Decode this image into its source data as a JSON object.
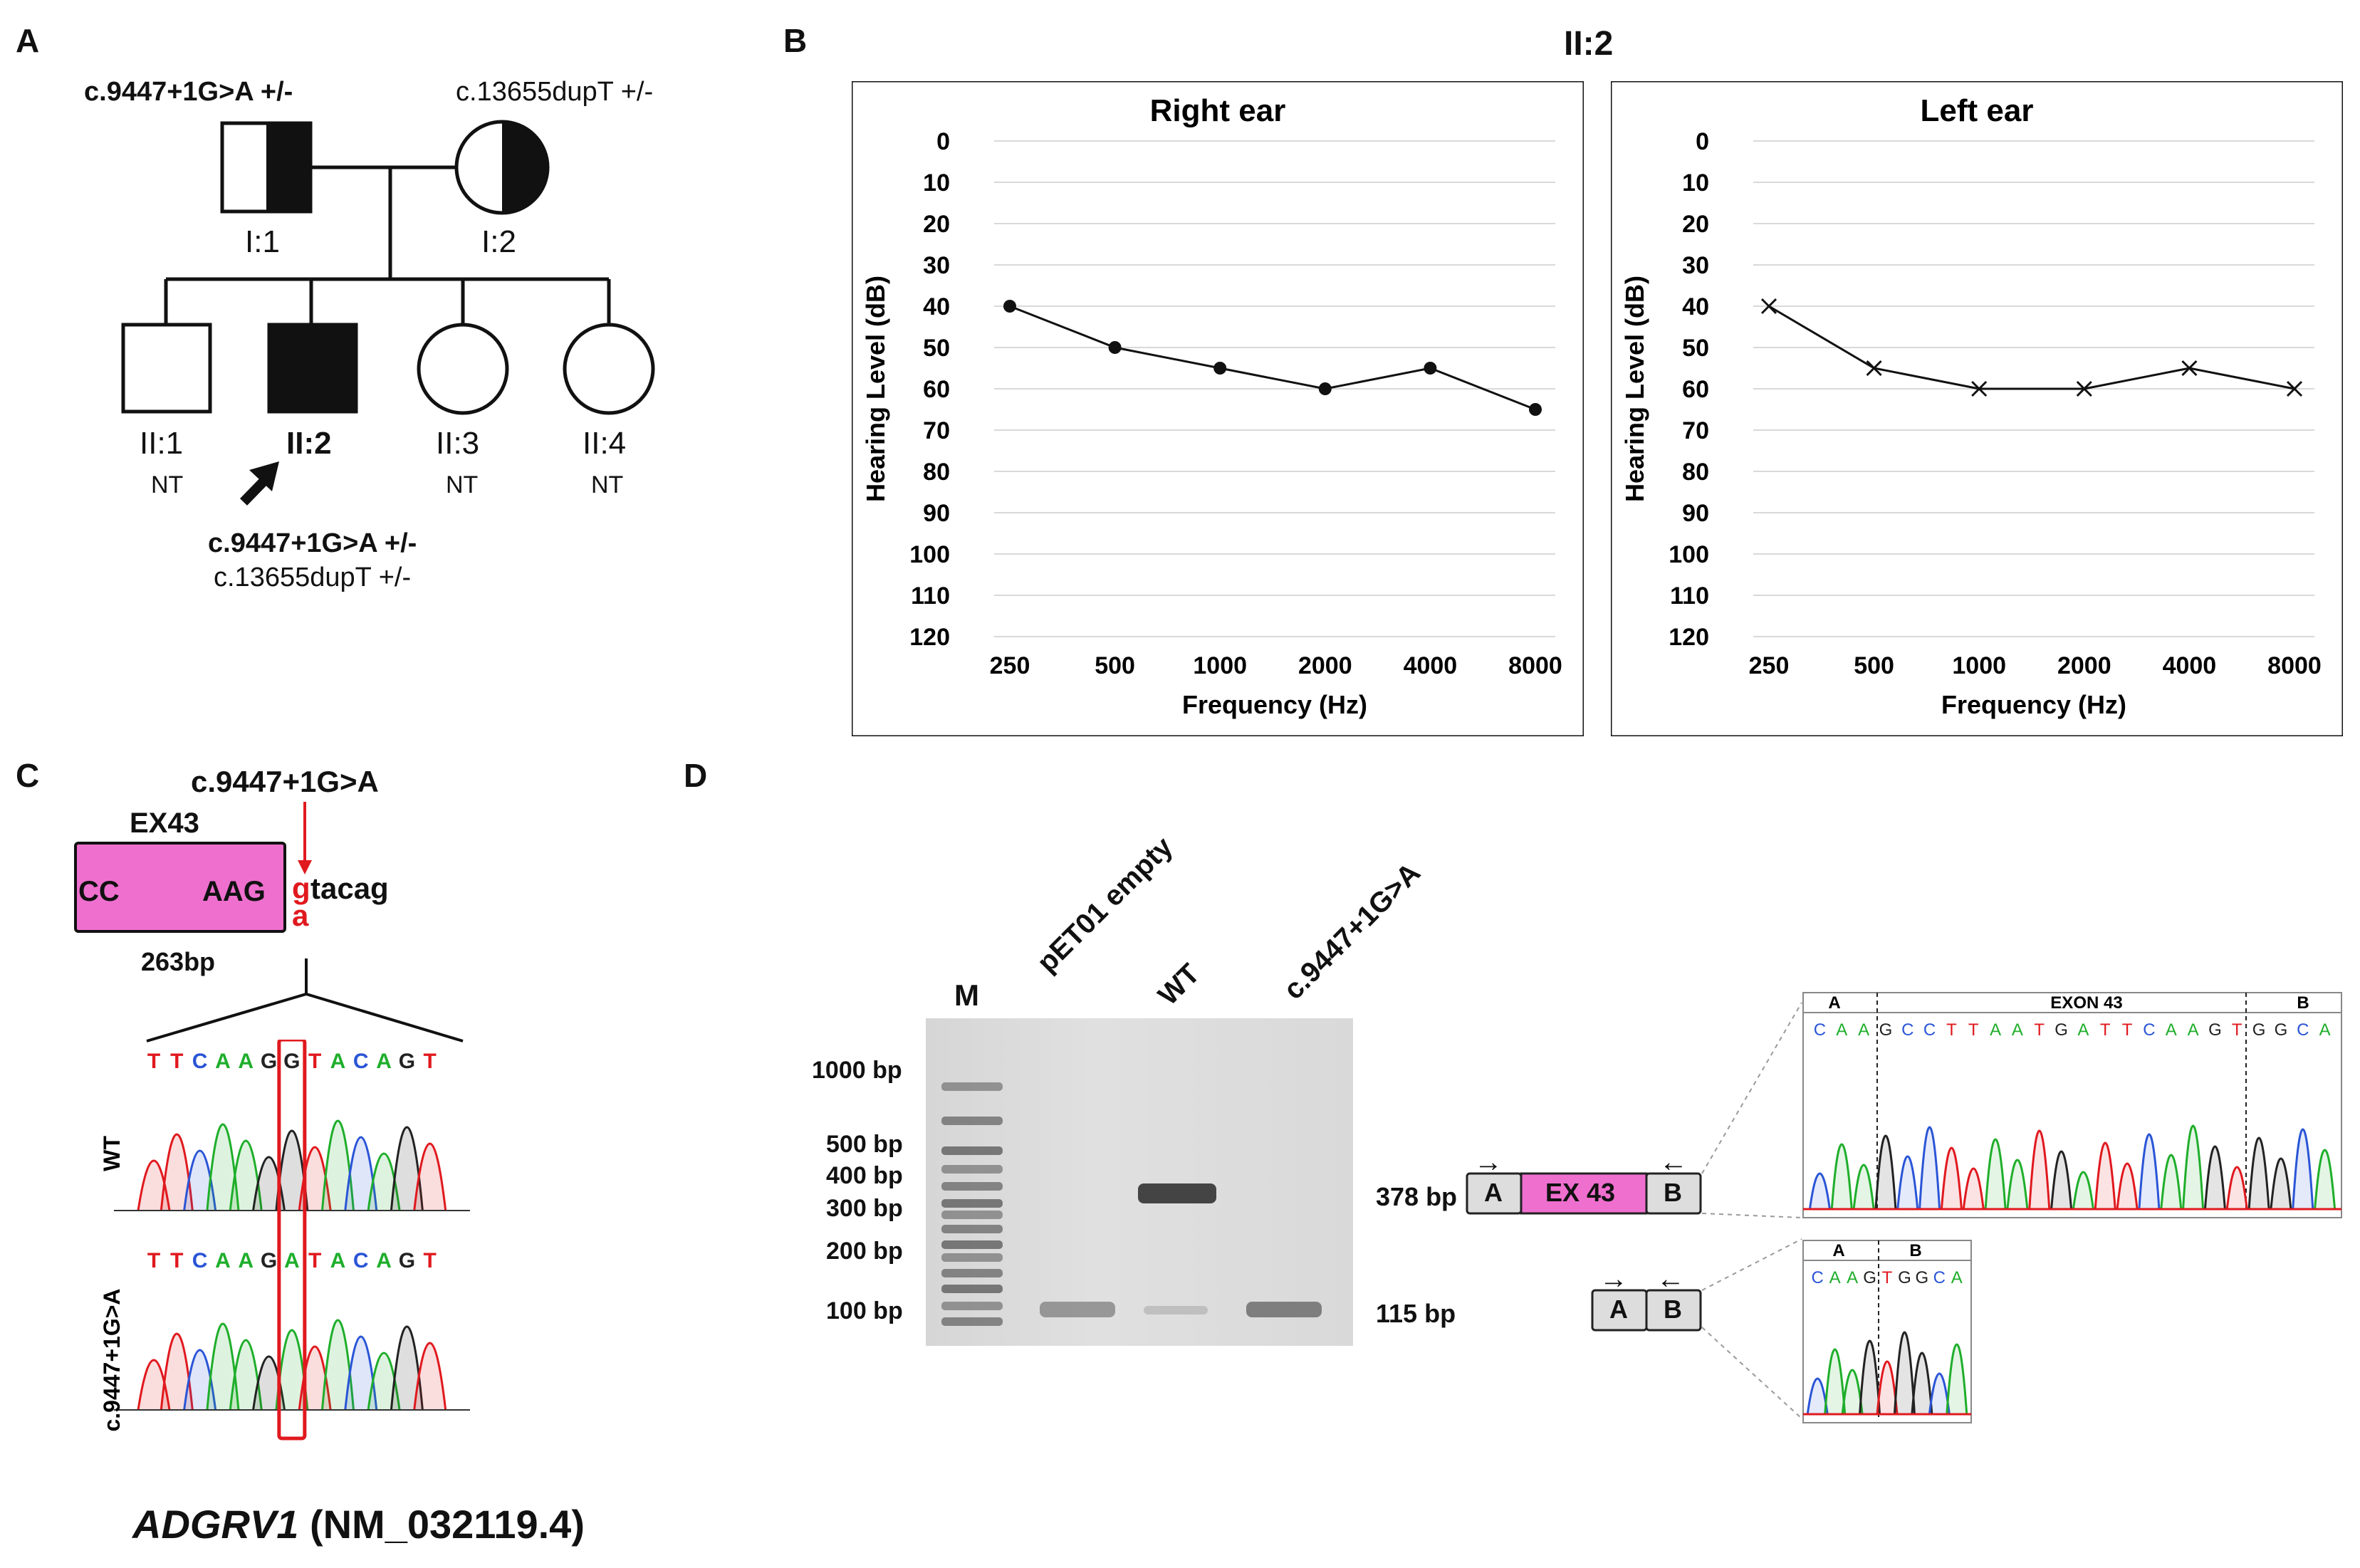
{
  "panels": {
    "a": "A",
    "b": "B",
    "c": "C",
    "d": "D"
  },
  "pedigree": {
    "father_variant": "c.9447+1G>A +/-",
    "mother_variant": "c.13655dupT +/-",
    "father_id": "I:1",
    "mother_id": "I:2",
    "children": [
      {
        "id": "II:1",
        "status": "NT"
      },
      {
        "id": "II:2",
        "status": ""
      },
      {
        "id": "II:3",
        "status": "NT"
      },
      {
        "id": "II:4",
        "status": "NT"
      }
    ],
    "proband_variant_1": "c.9447+1G>A +/-",
    "proband_variant_2": "c.13655dupT +/-"
  },
  "audiogram_title": "II:2",
  "chart_data": [
    {
      "type": "line",
      "title": "Right ear",
      "xlabel": "Frequency (Hz)",
      "ylabel": "Hearing Level (dB)",
      "categories": [
        "250",
        "500",
        "1000",
        "2000",
        "4000",
        "8000"
      ],
      "values": [
        40,
        50,
        55,
        60,
        55,
        65
      ],
      "ylim": [
        0,
        120
      ],
      "yticks": [
        "0",
        "10",
        "20",
        "30",
        "40",
        "50",
        "60",
        "70",
        "80",
        "90",
        "100",
        "110",
        "120"
      ],
      "marker": "circle",
      "y_inverted": true,
      "grid": true
    },
    {
      "type": "line",
      "title": "Left ear",
      "xlabel": "Frequency (Hz)",
      "ylabel": "Hearing Level (dB)",
      "categories": [
        "250",
        "500",
        "1000",
        "2000",
        "4000",
        "8000"
      ],
      "values": [
        40,
        55,
        60,
        60,
        55,
        60
      ],
      "ylim": [
        0,
        120
      ],
      "yticks": [
        "0",
        "10",
        "20",
        "30",
        "40",
        "50",
        "60",
        "70",
        "80",
        "90",
        "100",
        "110",
        "120"
      ],
      "marker": "x",
      "y_inverted": true,
      "grid": true
    }
  ],
  "exon": {
    "variant": "c.9447+1G>A",
    "name": "EX43",
    "seq_left": "CC",
    "seq_right": "AAG",
    "wt_base": "g",
    "mut_base": "a",
    "intron_seq": "tacag",
    "length": "263bp"
  },
  "chromatogram": {
    "wt_label": "WT",
    "mut_label": "c.9447+1G>A",
    "wt_seq": [
      "T",
      "T",
      "C",
      "A",
      "A",
      "G",
      "G",
      "T",
      "A",
      "C",
      "A",
      "G",
      "T"
    ],
    "mut_seq": [
      "T",
      "T",
      "C",
      "A",
      "A",
      "G",
      "A",
      "T",
      "A",
      "C",
      "A",
      "G",
      "T"
    ]
  },
  "gene": {
    "name": "ADGRV1",
    "transcript": "(NM_032119.4)"
  },
  "gel": {
    "lanes": [
      "M",
      "pET01 empty",
      "WT",
      "c.9447+1G>A"
    ],
    "ladder": [
      "1000 bp",
      "500 bp",
      "400 bp",
      "300 bp",
      "200 bp",
      "100 bp"
    ],
    "band_large": "378 bp",
    "band_small": "115 bp"
  },
  "constructs": {
    "exon_label": "EX 43",
    "box_a": "A",
    "box_b": "B",
    "arrow_right": "→",
    "arrow_left": "←"
  },
  "seq_insets": {
    "top_a": "A",
    "top_exon": "EXON 43",
    "top_b": "B",
    "top_seq": [
      "C",
      "A",
      "A",
      "G",
      "C",
      "C",
      "T",
      "T",
      "A",
      "A",
      "T",
      "G",
      "A",
      "T",
      "T",
      "C",
      "A",
      "A",
      "G",
      "T",
      "G",
      "G",
      "C",
      "A"
    ],
    "bottom_a": "A",
    "bottom_b": "B",
    "bottom_seq": [
      "C",
      "A",
      "A",
      "G",
      "T",
      "G",
      "G",
      "C",
      "A"
    ]
  },
  "colors": {
    "exon_pink": "#ef6fcf",
    "variant_red": "#e0191e",
    "base_A": "#1fae2b",
    "base_C": "#2a55d6",
    "base_G": "#222222",
    "base_T": "#e0191e"
  }
}
